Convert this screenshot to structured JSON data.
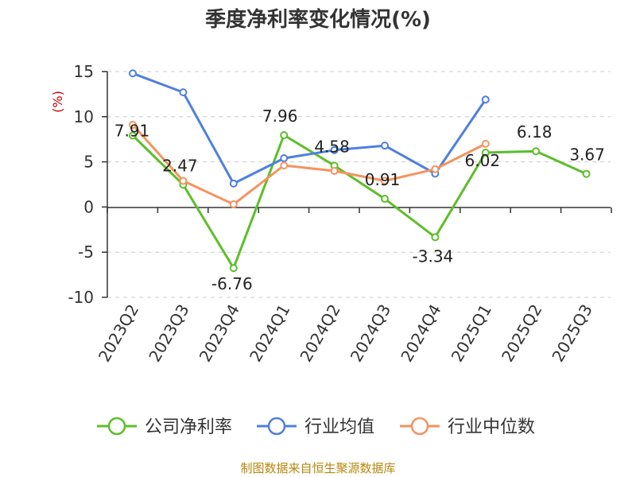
{
  "title": "季度净利率变化情况(%)",
  "source": "制图数据来自恒生聚源数据库",
  "chart_data": {
    "type": "line",
    "ylabel": "(%)",
    "ylabel_color": "#cc0000",
    "ylim": [
      -10,
      15
    ],
    "yticks": [
      -10,
      -5,
      0,
      5,
      10,
      15
    ],
    "ytick_labels": [
      "-10",
      "-5",
      "0",
      "5",
      "10",
      "15"
    ],
    "categories": [
      "2023Q2",
      "2023Q3",
      "2023Q4",
      "2024Q1",
      "2024Q2",
      "2024Q3",
      "2024Q4",
      "2025Q1",
      "2025Q2",
      "2025Q3"
    ],
    "grid": "horizontal dashed",
    "legend_position": "bottom",
    "series": [
      {
        "name": "公司净利率",
        "color": "#5dbe2a",
        "values": [
          7.91,
          2.47,
          -6.76,
          7.96,
          4.58,
          0.91,
          -3.34,
          6.02,
          6.18,
          3.67
        ],
        "data_labels": [
          "7.91",
          "2.47",
          "-6.76",
          "7.96",
          "4.58",
          "0.91",
          "-3.34",
          "6.02",
          "6.18",
          "3.67"
        ]
      },
      {
        "name": "行业均值",
        "color": "#4f7fdf",
        "values": [
          14.8,
          12.7,
          2.6,
          5.4,
          6.3,
          6.8,
          3.7,
          11.9,
          null,
          null
        ]
      },
      {
        "name": "行业中位数",
        "color": "#f5935f",
        "values": [
          9.1,
          2.9,
          0.3,
          4.6,
          4.0,
          2.9,
          4.2,
          7.0,
          null,
          null
        ]
      }
    ]
  }
}
